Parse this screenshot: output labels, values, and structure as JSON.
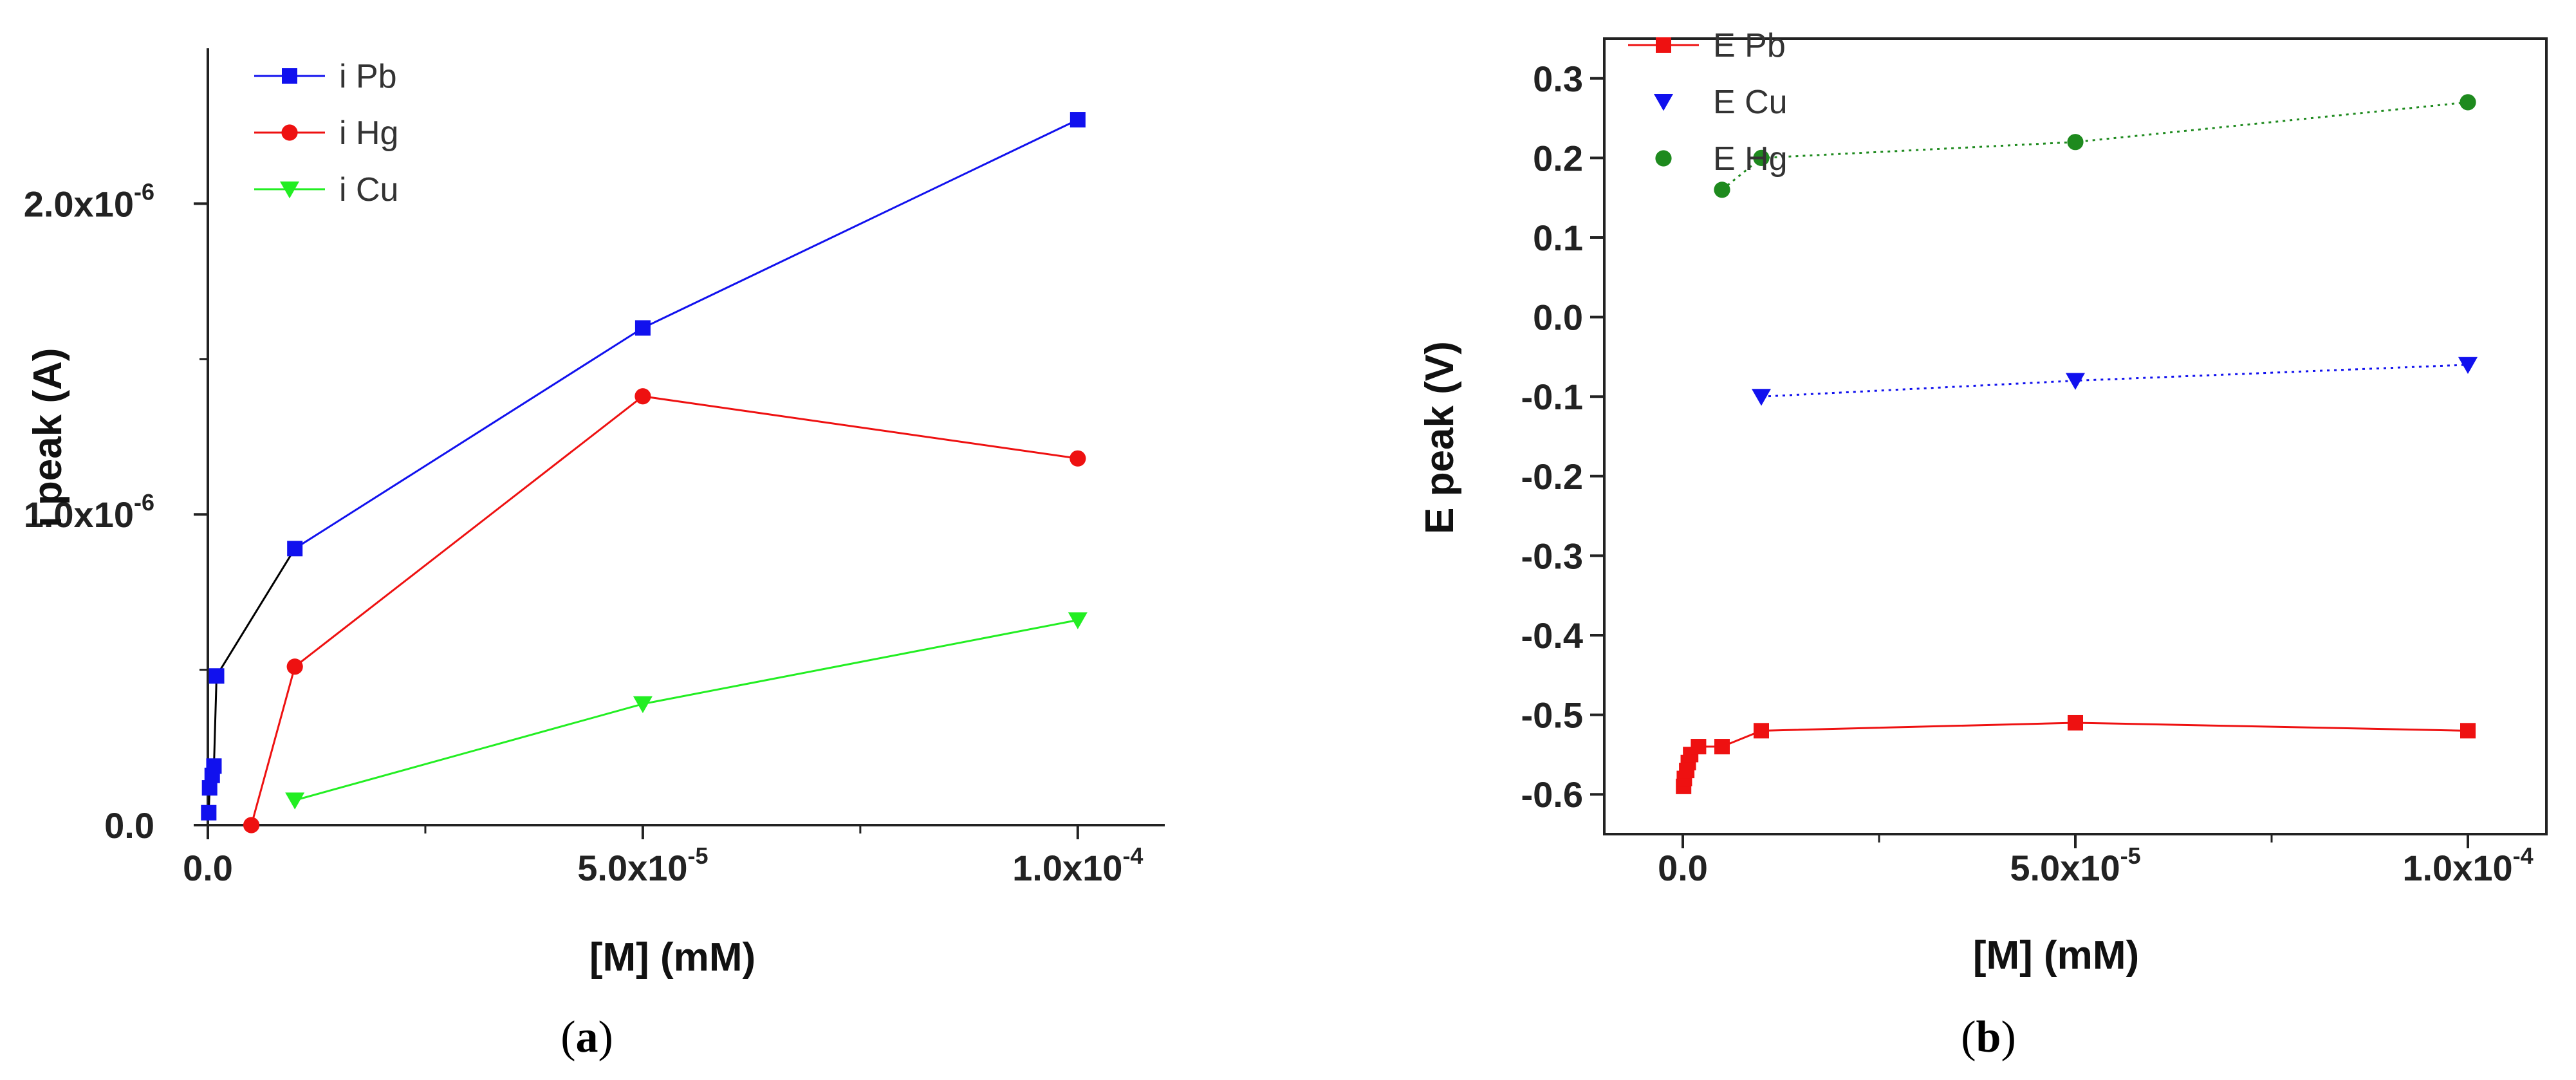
{
  "chart_data": [
    {
      "type": "line",
      "panel": "a",
      "caption": "(a)",
      "caption_letter": "a",
      "xlabel": "[M] (mM)",
      "ylabel": "i peak (A)",
      "xlim": [
        0,
        0.00011
      ],
      "ylim": [
        0,
        2.5e-06
      ],
      "xticks": [
        {
          "value": 0,
          "label": "0.0",
          "exp": ""
        },
        {
          "value": 5e-05,
          "label": "5.0x10",
          "exp": "-5"
        },
        {
          "value": 0.0001,
          "label": "1.0x10",
          "exp": "-4"
        }
      ],
      "xminor": [
        2.5e-05,
        7.5e-05
      ],
      "yticks": [
        {
          "value": 0,
          "label": "0.0",
          "exp": ""
        },
        {
          "value": 1e-06,
          "label": "1.0x10",
          "exp": "-6"
        },
        {
          "value": 2e-06,
          "label": "2.0x10",
          "exp": "-6"
        }
      ],
      "yminor": [
        5e-07,
        1.5e-06
      ],
      "legend_position": "top-left",
      "series": [
        {
          "name": "i Pb",
          "color": "#1111ee",
          "marker": "square",
          "x": [
            1e-07,
            2e-07,
            5e-07,
            7e-07,
            1e-06,
            1e-05,
            5e-05,
            0.0001
          ],
          "y": [
            4e-08,
            1.2e-07,
            1.6e-07,
            1.9e-07,
            4.8e-07,
            8.9e-07,
            1.6e-06,
            2.27e-06
          ]
        },
        {
          "name": "i Hg",
          "color": "#ee1111",
          "marker": "circle",
          "x": [
            5e-06,
            1e-05,
            5e-05,
            0.0001
          ],
          "y": [
            0.0,
            5.1e-07,
            1.38e-06,
            1.18e-06
          ]
        },
        {
          "name": "i Cu",
          "color": "#22ee22",
          "marker": "triangle-down",
          "x": [
            1e-05,
            5e-05,
            0.0001
          ],
          "y": [
            8e-08,
            3.9e-07,
            6.6e-07
          ]
        }
      ]
    },
    {
      "type": "scatter",
      "panel": "b",
      "caption": "(b)",
      "caption_letter": "b",
      "xlabel": "[M] (mM)",
      "ylabel": "E peak (V)",
      "xlim": [
        -1e-05,
        0.00011
      ],
      "ylim": [
        -0.65,
        0.35
      ],
      "xticks": [
        {
          "value": 0,
          "label": "0.0",
          "exp": ""
        },
        {
          "value": 5e-05,
          "label": "5.0x10",
          "exp": "-5"
        },
        {
          "value": 0.0001,
          "label": "1.0x10",
          "exp": "-4"
        }
      ],
      "xminor": [
        2.5e-05,
        7.5e-05
      ],
      "yticks": [
        {
          "value": 0.3,
          "label": "0.3",
          "exp": ""
        },
        {
          "value": 0.2,
          "label": "0.2",
          "exp": ""
        },
        {
          "value": 0.1,
          "label": "0.1",
          "exp": ""
        },
        {
          "value": 0.0,
          "label": "0.0",
          "exp": ""
        },
        {
          "value": -0.1,
          "label": "-0.1",
          "exp": ""
        },
        {
          "value": -0.2,
          "label": "-0.2",
          "exp": ""
        },
        {
          "value": -0.3,
          "label": "-0.3",
          "exp": ""
        },
        {
          "value": -0.4,
          "label": "-0.4",
          "exp": ""
        },
        {
          "value": -0.5,
          "label": "-0.5",
          "exp": ""
        },
        {
          "value": -0.6,
          "label": "-0.6",
          "exp": ""
        }
      ],
      "yminor": [],
      "legend_position": "top-left",
      "series": [
        {
          "name": "E Pb",
          "color": "#ee1111",
          "marker": "square",
          "line": "solid",
          "x": [
            1e-07,
            2e-07,
            5e-07,
            7e-07,
            1e-06,
            2e-06,
            5e-06,
            1e-05,
            5e-05,
            0.0001
          ],
          "y": [
            -0.59,
            -0.58,
            -0.57,
            -0.56,
            -0.55,
            -0.54,
            -0.54,
            -0.52,
            -0.51,
            -0.52
          ]
        },
        {
          "name": "E Cu",
          "color": "#1111ee",
          "marker": "triangle-down",
          "line": "dotted",
          "x": [
            1e-05,
            5e-05,
            0.0001
          ],
          "y": [
            -0.1,
            -0.08,
            -0.06
          ]
        },
        {
          "name": "E Hg",
          "color": "#1e8a1e",
          "marker": "circle",
          "line": "dotted",
          "x": [
            5e-06,
            1e-05,
            5e-05,
            0.0001
          ],
          "y": [
            0.16,
            0.2,
            0.22,
            0.27
          ]
        }
      ]
    }
  ]
}
